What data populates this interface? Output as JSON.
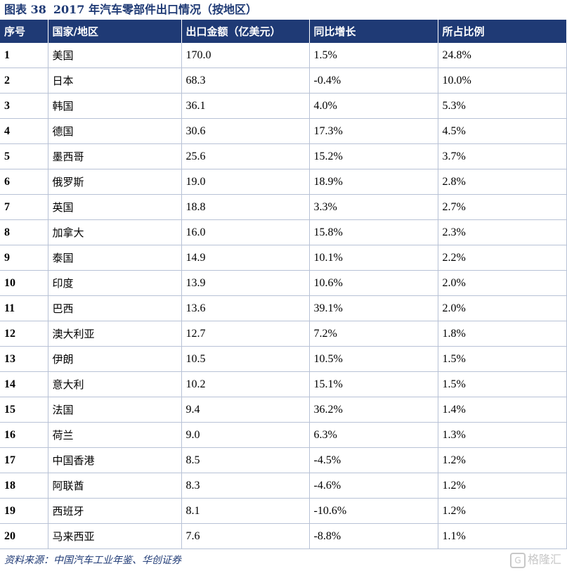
{
  "title": {
    "label": "图表 38",
    "text": "2017 年汽车零部件出口情况（按地区）"
  },
  "table": {
    "headers": [
      "序号",
      "国家/地区",
      "出口金额（亿美元）",
      "同比增长",
      "所占比例"
    ],
    "rows": [
      [
        "1",
        "美国",
        "170.0",
        "1.5%",
        "24.8%"
      ],
      [
        "2",
        "日本",
        "68.3",
        "-0.4%",
        "10.0%"
      ],
      [
        "3",
        "韩国",
        "36.1",
        "4.0%",
        "5.3%"
      ],
      [
        "4",
        "德国",
        "30.6",
        "17.3%",
        "4.5%"
      ],
      [
        "5",
        "墨西哥",
        "25.6",
        "15.2%",
        "3.7%"
      ],
      [
        "6",
        "俄罗斯",
        "19.0",
        "18.9%",
        "2.8%"
      ],
      [
        "7",
        "英国",
        "18.8",
        "3.3%",
        "2.7%"
      ],
      [
        "8",
        "加拿大",
        "16.0",
        "15.8%",
        "2.3%"
      ],
      [
        "9",
        "泰国",
        "14.9",
        "10.1%",
        "2.2%"
      ],
      [
        "10",
        "印度",
        "13.9",
        "10.6%",
        "2.0%"
      ],
      [
        "11",
        "巴西",
        "13.6",
        "39.1%",
        "2.0%"
      ],
      [
        "12",
        "澳大利亚",
        "12.7",
        "7.2%",
        "1.8%"
      ],
      [
        "13",
        "伊朗",
        "10.5",
        "10.5%",
        "1.5%"
      ],
      [
        "14",
        "意大利",
        "10.2",
        "15.1%",
        "1.5%"
      ],
      [
        "15",
        "法国",
        "9.4",
        "36.2%",
        "1.4%"
      ],
      [
        "16",
        "荷兰",
        "9.0",
        "6.3%",
        "1.3%"
      ],
      [
        "17",
        "中国香港",
        "8.5",
        "-4.5%",
        "1.2%"
      ],
      [
        "18",
        "阿联酋",
        "8.3",
        "-4.6%",
        "1.2%"
      ],
      [
        "19",
        "西班牙",
        "8.1",
        "-10.6%",
        "1.2%"
      ],
      [
        "20",
        "马来西亚",
        "7.6",
        "-8.8%",
        "1.1%"
      ]
    ]
  },
  "source": "资料来源：中国汽车工业年鉴、华创证券",
  "watermark": {
    "icon": "G",
    "text": "格隆汇"
  },
  "colors": {
    "header_bg": "#1f3a75",
    "border": "#b8c2d6",
    "title": "#1f3a75"
  }
}
